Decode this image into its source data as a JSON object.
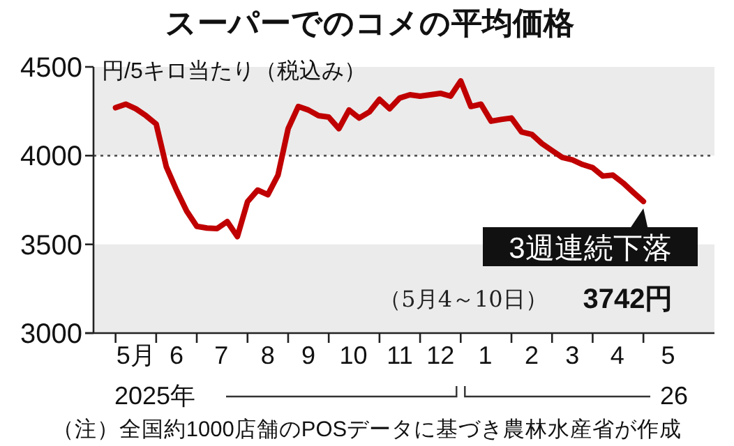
{
  "chart_data": {
    "type": "line",
    "title": "スーパーでのコメの平均価格",
    "ylabel": "円/5キロ当たり（税込み）",
    "x": [
      "2025-05-05",
      "2025-05-12",
      "2025-05-19",
      "2025-05-26",
      "2025-06-02",
      "2025-06-09",
      "2025-06-16",
      "2025-06-23",
      "2025-06-30",
      "2025-07-07",
      "2025-07-14",
      "2025-07-21",
      "2025-07-28",
      "2025-08-04",
      "2025-08-11",
      "2025-08-18",
      "2025-08-25",
      "2025-09-01",
      "2025-09-08",
      "2025-09-15",
      "2025-09-22",
      "2025-09-29",
      "2025-10-06",
      "2025-10-13",
      "2025-10-20",
      "2025-10-27",
      "2025-11-03",
      "2025-11-10",
      "2025-11-17",
      "2025-11-24",
      "2025-12-01",
      "2025-12-08",
      "2025-12-15",
      "2025-12-22",
      "2025-12-29",
      "2026-01-05",
      "2026-01-12",
      "2026-01-19",
      "2026-01-26",
      "2026-02-02",
      "2026-02-09",
      "2026-02-16",
      "2026-02-23",
      "2026-03-02",
      "2026-03-09",
      "2026-03-16",
      "2026-03-23",
      "2026-03-30",
      "2026-04-06",
      "2026-04-13",
      "2026-04-20",
      "2026-04-27",
      "2026-05-04"
    ],
    "series": [
      {
        "color": "#c00000",
        "values": [
          4270,
          4290,
          4264,
          4225,
          4178,
          3937,
          3806,
          3688,
          3602,
          3592,
          3589,
          3628,
          3544,
          3741,
          3806,
          3780,
          3890,
          4152,
          4277,
          4257,
          4225,
          4217,
          4152,
          4257,
          4212,
          4246,
          4317,
          4264,
          4325,
          4343,
          4335,
          4343,
          4351,
          4335,
          4421,
          4277,
          4290,
          4194,
          4204,
          4212,
          4133,
          4120,
          4068,
          4029,
          3990,
          3976,
          3950,
          3932,
          3885,
          3890,
          3846,
          3793,
          3742
        ]
      }
    ],
    "xlim": [
      "2025-04-14",
      "2026-06-22"
    ],
    "xticks": [
      {
        "value": "2025-05-05",
        "label": null
      },
      {
        "value": "2025-05-19",
        "label": "5月"
      },
      {
        "value": "2025-06-02",
        "label": null
      },
      {
        "value": "2025-06-16",
        "label": "6"
      },
      {
        "value": "2025-06-30",
        "label": null
      },
      {
        "value": "2025-07-17",
        "label": "7"
      },
      {
        "value": "2025-08-04",
        "label": null
      },
      {
        "value": "2025-08-18",
        "label": "8"
      },
      {
        "value": "2025-09-01",
        "label": null
      },
      {
        "value": "2025-09-15",
        "label": "9"
      },
      {
        "value": "2025-09-29",
        "label": null
      },
      {
        "value": "2025-10-16",
        "label": "10"
      },
      {
        "value": "2025-11-03",
        "label": null
      },
      {
        "value": "2025-11-17",
        "label": "11"
      },
      {
        "value": "2025-12-01",
        "label": null
      },
      {
        "value": "2025-12-15",
        "label": "12"
      },
      {
        "value": "2025-12-29",
        "label": null
      },
      {
        "value": "2026-01-15",
        "label": "1"
      },
      {
        "value": "2026-02-02",
        "label": null
      },
      {
        "value": "2026-02-16",
        "label": "2"
      },
      {
        "value": "2026-03-02",
        "label": null
      },
      {
        "value": "2026-03-16",
        "label": "3"
      },
      {
        "value": "2026-03-30",
        "label": null
      },
      {
        "value": "2026-04-16",
        "label": "4"
      },
      {
        "value": "2026-05-04",
        "label": null
      },
      {
        "value": "2026-05-21",
        "label": "5"
      }
    ],
    "ylim": [
      3000,
      4500
    ],
    "yticks": [
      3000,
      3500,
      4000,
      4500
    ],
    "bands": [
      {
        "axis": "y",
        "from": 3000,
        "to": 3500,
        "color": "#ebebeb"
      },
      {
        "axis": "y",
        "from": 4000,
        "to": 4500,
        "color": "#ebebeb"
      }
    ],
    "ref_lines": [
      {
        "axis": "y",
        "value": 4000,
        "line_style": "dotted",
        "color": "#555555"
      }
    ],
    "annotations": [
      {
        "text": "3週連続下落",
        "x": "2026-05-04",
        "y": 3742
      },
      "（5月4～10日）",
      "3742円",
      "2025年",
      "26",
      "（注）全国約1000店舗のPOSデータに基づき農林水産省が作成"
    ]
  }
}
